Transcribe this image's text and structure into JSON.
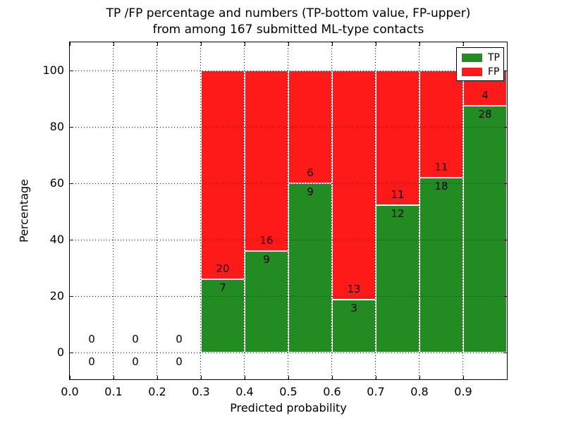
{
  "titles": {
    "line1": "TP /FP percentage and numbers (TP-bottom value, FP-upper)",
    "line2": "from among 167 submitted ML-type contacts"
  },
  "chart_data": {
    "type": "bar",
    "stacked": true,
    "normalized_to_percent": true,
    "title": "TP /FP percentage and numbers (TP-bottom value, FP-upper)\nfrom among 167 submitted ML-type contacts",
    "xlabel": "Predicted probability",
    "ylabel": "Percentage",
    "xlim": [
      0.0,
      1.0
    ],
    "ylim": [
      -10,
      110
    ],
    "x_ticks": [
      "0.0",
      "0.1",
      "0.2",
      "0.3",
      "0.4",
      "0.5",
      "0.6",
      "0.7",
      "0.8",
      "0.9"
    ],
    "y_ticks": [
      "0",
      "20",
      "40",
      "60",
      "80",
      "100"
    ],
    "grid": "dotted both axes",
    "total_contacts": 167,
    "legend": {
      "position": "upper-right",
      "entries": [
        {
          "label": "TP",
          "color": "#228b22"
        },
        {
          "label": "FP",
          "color": "#ff1a1a"
        }
      ]
    },
    "bins": [
      {
        "range": [
          0.0,
          0.1
        ],
        "tp": 0,
        "fp": 0
      },
      {
        "range": [
          0.1,
          0.2
        ],
        "tp": 0,
        "fp": 0
      },
      {
        "range": [
          0.2,
          0.3
        ],
        "tp": 0,
        "fp": 0
      },
      {
        "range": [
          0.3,
          0.4
        ],
        "tp": 7,
        "fp": 20
      },
      {
        "range": [
          0.4,
          0.5
        ],
        "tp": 9,
        "fp": 16
      },
      {
        "range": [
          0.5,
          0.6
        ],
        "tp": 9,
        "fp": 6
      },
      {
        "range": [
          0.6,
          0.7
        ],
        "tp": 3,
        "fp": 13
      },
      {
        "range": [
          0.7,
          0.8
        ],
        "tp": 12,
        "fp": 11
      },
      {
        "range": [
          0.8,
          0.9
        ],
        "tp": 18,
        "fp": 11
      },
      {
        "range": [
          0.9,
          1.0
        ],
        "tp": 28,
        "fp": 4
      }
    ],
    "tp_percent_by_bin": [
      null,
      null,
      null,
      25.9,
      36.0,
      60.0,
      18.8,
      52.2,
      62.1,
      87.5
    ]
  },
  "colors": {
    "tp": "#228b22",
    "fp": "#ff1a1a",
    "grid": "#000000",
    "spine": "#000000",
    "background": "#ffffff"
  }
}
